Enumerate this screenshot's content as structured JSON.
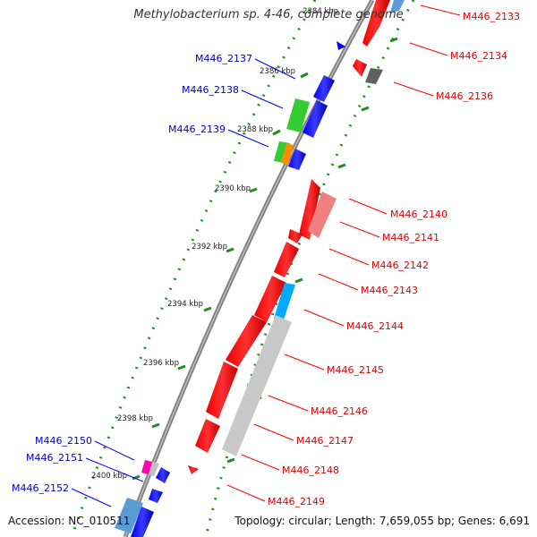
{
  "title": "Methylobacterium sp. 4-46, complete genome",
  "footer": {
    "accession": "Accession: NC_010511",
    "topology": "Topology: circular; Length: 7,659,055 bp; Genes: 6,691"
  },
  "colors": {
    "plus_label": "#e00000",
    "minus_label": "#0000cc",
    "backbone": "#808080",
    "tick": "#228b22"
  },
  "scale_labels": [
    "2384 kbp",
    "2386 kbp",
    "2388 kbp",
    "2390 kbp",
    "2392 kbp",
    "2394 kbp",
    "2396 kbp",
    "2398 kbp",
    "2400 kbp"
  ],
  "genes_plus": [
    {
      "label": "M446_2133"
    },
    {
      "label": "M446_2134"
    },
    {
      "label": "M446_2136"
    },
    {
      "label": "M446_2140"
    },
    {
      "label": "M446_2141"
    },
    {
      "label": "M446_2142"
    },
    {
      "label": "M446_2143"
    },
    {
      "label": "M446_2144"
    },
    {
      "label": "M446_2145"
    },
    {
      "label": "M446_2146"
    },
    {
      "label": "M446_2147"
    },
    {
      "label": "M446_2148"
    },
    {
      "label": "M446_2149"
    }
  ],
  "genes_minus": [
    {
      "label": "M446_2137"
    },
    {
      "label": "M446_2138"
    },
    {
      "label": "M446_2139"
    },
    {
      "label": "M446_2150"
    },
    {
      "label": "M446_2151"
    },
    {
      "label": "M446_2152"
    }
  ]
}
